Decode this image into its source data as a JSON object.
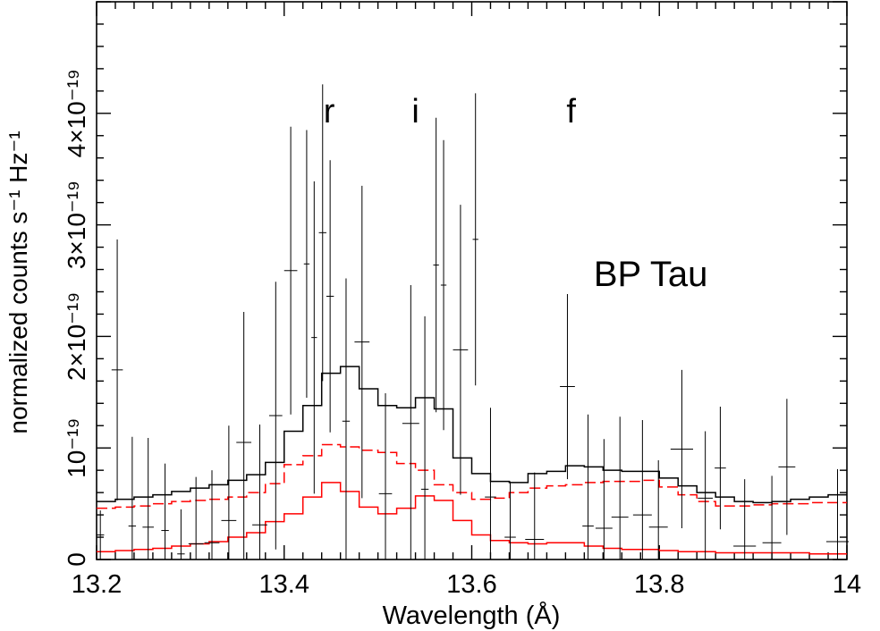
{
  "chart_data": {
    "type": "line",
    "title": "",
    "xlabel": "Wavelength (Å)",
    "ylabel": "normalized counts s⁻¹ Hz⁻¹",
    "xlim": [
      13.2,
      14.0
    ],
    "ylim": [
      0,
      5e-19
    ],
    "scale": 1e-19,
    "x_ticks": [
      {
        "value": 13.2,
        "label": "13.2"
      },
      {
        "value": 13.4,
        "label": "13.4"
      },
      {
        "value": 13.6,
        "label": "13.6"
      },
      {
        "value": 13.8,
        "label": "13.8"
      },
      {
        "value": 14.0,
        "label": "14"
      }
    ],
    "y_ticks": [
      {
        "value": 0,
        "label": "0"
      },
      {
        "value": 1e-19,
        "label": "10⁻¹⁹"
      },
      {
        "value": 2e-19,
        "label": "2×10⁻¹⁹"
      },
      {
        "value": 3e-19,
        "label": "3×10⁻¹⁹"
      },
      {
        "value": 4e-19,
        "label": "4×10⁻¹⁹"
      }
    ],
    "annotations": [
      {
        "text": "r",
        "x": 13.442,
        "y": 3.92e-19,
        "size": "line-label"
      },
      {
        "text": "i",
        "x": 13.536,
        "y": 3.92e-19,
        "size": "line-label"
      },
      {
        "text": "f",
        "x": 13.701,
        "y": 3.92e-19,
        "size": "line-label"
      },
      {
        "text": "BP Tau",
        "x": 13.73,
        "y": 2.45e-19,
        "size": "object-label"
      }
    ],
    "data": {
      "bin_edges": [
        13.2,
        13.22,
        13.24,
        13.26,
        13.28,
        13.3,
        13.32,
        13.34,
        13.36,
        13.38,
        13.4,
        13.42,
        13.44,
        13.46,
        13.48,
        13.5,
        13.52,
        13.54,
        13.56,
        13.58,
        13.6,
        13.62,
        13.64,
        13.66,
        13.68,
        13.7,
        13.72,
        13.74,
        13.76,
        13.78,
        13.8,
        13.82,
        13.84,
        13.86,
        13.88,
        13.9,
        13.92,
        13.94,
        13.96,
        13.98,
        14.0
      ],
      "x": [
        13.204,
        13.222,
        13.238,
        13.255,
        13.273,
        13.29,
        13.306,
        13.323,
        13.341,
        13.357,
        13.374,
        13.391,
        13.407,
        13.424,
        13.432,
        13.441,
        13.449,
        13.466,
        13.483,
        13.508,
        13.535,
        13.55,
        13.562,
        13.57,
        13.588,
        13.604,
        13.62,
        13.641,
        13.667,
        13.702,
        13.724,
        13.741,
        13.758,
        13.782,
        13.799,
        13.824,
        13.849,
        13.865,
        13.891,
        13.92,
        13.936,
        13.99
      ],
      "y": [
        0.22,
        1.7,
        0.3,
        0.29,
        0.26,
        0.05,
        0.14,
        0.15,
        0.35,
        1.05,
        0.31,
        1.29,
        2.59,
        2.65,
        1.99,
        2.93,
        2.36,
        1.24,
        1.95,
        0.59,
        1.22,
        0.63,
        2.64,
        2.46,
        1.88,
        2.87,
        0.56,
        0.2,
        0.18,
        1.55,
        0.3,
        0.28,
        0.38,
        0.4,
        0.29,
        0.99,
        0.55,
        0.82,
        0.12,
        0.15,
        0.83,
        0.16
      ],
      "xerr": [
        0.004,
        0.006,
        0.004,
        0.006,
        0.004,
        0.004,
        0.008,
        0.008,
        0.008,
        0.008,
        0.008,
        0.007,
        0.007,
        0.003,
        0.003,
        0.004,
        0.004,
        0.004,
        0.008,
        0.007,
        0.009,
        0.004,
        0.003,
        0.003,
        0.008,
        0.003,
        0.006,
        0.006,
        0.01,
        0.008,
        0.006,
        0.009,
        0.009,
        0.01,
        0.01,
        0.012,
        0.008,
        0.006,
        0.012,
        0.01,
        0.009,
        0.012
      ],
      "yerr": [
        0.22,
        1.17,
        0.8,
        0.8,
        0.6,
        0.4,
        0.6,
        0.65,
        0.85,
        1.17,
        0.9,
        1.2,
        1.29,
        1.2,
        1.4,
        1.33,
        1.22,
        1.28,
        1.4,
        0.9,
        1.24,
        1.55,
        1.32,
        1.3,
        1.3,
        1.31,
        0.8,
        0.5,
        0.6,
        0.83,
        1.0,
        0.8,
        0.9,
        0.85,
        0.6,
        0.71,
        0.6,
        0.55,
        0.6,
        0.6,
        0.61,
        0.65
      ]
    },
    "series": [
      {
        "style": "black-histogram",
        "color": "#000000",
        "values": [
          0.52,
          0.54,
          0.56,
          0.58,
          0.61,
          0.64,
          0.67,
          0.71,
          0.76,
          0.87,
          1.15,
          1.38,
          1.67,
          1.73,
          1.53,
          1.38,
          1.36,
          1.45,
          1.35,
          0.91,
          0.77,
          0.7,
          0.69,
          0.77,
          0.79,
          0.84,
          0.83,
          0.8,
          0.79,
          0.79,
          0.73,
          0.66,
          0.6,
          0.56,
          0.52,
          0.51,
          0.52,
          0.54,
          0.56,
          0.58
        ]
      },
      {
        "style": "red-dashed-histogram",
        "color": "#ff0000",
        "values": [
          0.46,
          0.47,
          0.48,
          0.5,
          0.52,
          0.53,
          0.54,
          0.56,
          0.6,
          0.68,
          0.85,
          0.93,
          1.03,
          1.01,
          0.98,
          0.96,
          0.86,
          0.8,
          0.67,
          0.6,
          0.54,
          0.55,
          0.6,
          0.64,
          0.66,
          0.67,
          0.69,
          0.7,
          0.7,
          0.71,
          0.65,
          0.58,
          0.52,
          0.48,
          0.48,
          0.49,
          0.5,
          0.5,
          0.51,
          0.51
        ]
      },
      {
        "style": "red-solid-histogram",
        "color": "#ff0000",
        "values": [
          0.07,
          0.08,
          0.09,
          0.1,
          0.12,
          0.14,
          0.16,
          0.2,
          0.24,
          0.34,
          0.41,
          0.56,
          0.69,
          0.61,
          0.47,
          0.41,
          0.46,
          0.57,
          0.53,
          0.35,
          0.22,
          0.17,
          0.15,
          0.14,
          0.15,
          0.15,
          0.12,
          0.1,
          0.09,
          0.09,
          0.08,
          0.07,
          0.07,
          0.06,
          0.06,
          0.06,
          0.06,
          0.06,
          0.05,
          0.05
        ]
      }
    ],
    "grid": false,
    "legend": "none"
  }
}
